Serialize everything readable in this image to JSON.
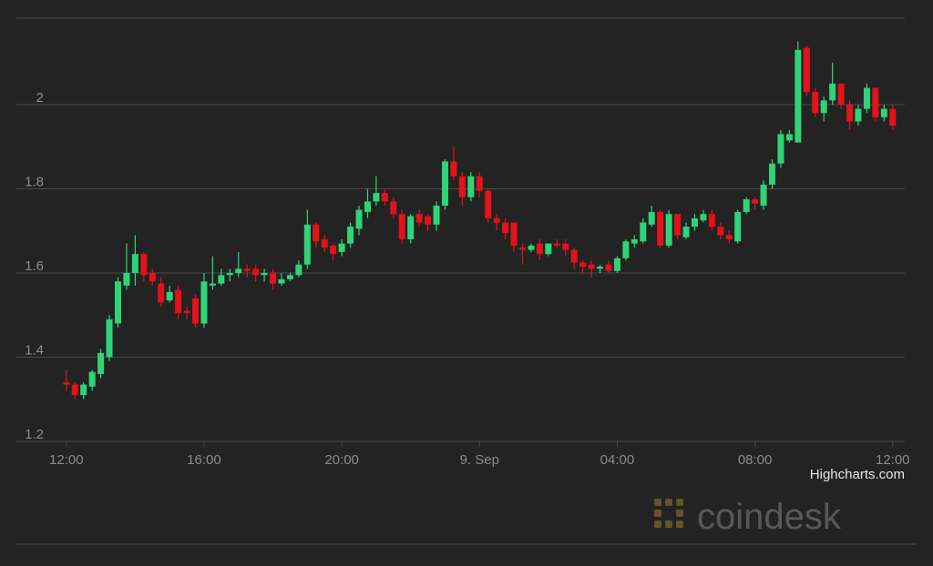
{
  "chart_data": {
    "type": "candlestick",
    "x": [
      0,
      0.25,
      0.5,
      0.75,
      1,
      1.25,
      1.5,
      1.75,
      2,
      2.25,
      2.5,
      2.75,
      3,
      3.25,
      3.5,
      3.75,
      4,
      4.25,
      4.5,
      4.75,
      5,
      5.25,
      5.5,
      5.75,
      6,
      6.25,
      6.5,
      6.75,
      7,
      7.25,
      7.5,
      7.75,
      8,
      8.25,
      8.5,
      8.75,
      9,
      9.25,
      9.5,
      9.75,
      10,
      10.25,
      10.5,
      10.75,
      11,
      11.25,
      11.5,
      11.75,
      12,
      12.25,
      12.5,
      12.75,
      13,
      13.25,
      13.5,
      13.75,
      14,
      14.25,
      14.5,
      14.75,
      15,
      15.25,
      15.5,
      15.75,
      16,
      16.25,
      16.5,
      16.75,
      17,
      17.25,
      17.5,
      17.75,
      18,
      18.25,
      18.5,
      18.75,
      19,
      19.25,
      19.5,
      19.75,
      20,
      20.25,
      20.5,
      20.75,
      21,
      21.25,
      21.5,
      21.75,
      22,
      22.25,
      22.5,
      22.75,
      23,
      23.25,
      23.5,
      23.75,
      24
    ],
    "series": [
      {
        "open": [
          1.34,
          1.335,
          1.31,
          1.33,
          1.36,
          1.4,
          1.48,
          1.57,
          1.6,
          1.645,
          1.6,
          1.575,
          1.535,
          1.56,
          1.51,
          1.54,
          1.48,
          1.57,
          1.575,
          1.595,
          1.6,
          1.61,
          1.61,
          1.595,
          1.6,
          1.575,
          1.585,
          1.595,
          1.62,
          1.715,
          1.68,
          1.665,
          1.65,
          1.67,
          1.705,
          1.745,
          1.77,
          1.79,
          1.77,
          1.74,
          1.68,
          1.74,
          1.735,
          1.715,
          1.76,
          1.865,
          1.83,
          1.78,
          1.83,
          1.795,
          1.73,
          1.72,
          1.72,
          1.66,
          1.655,
          1.67,
          1.645,
          1.67,
          1.67,
          1.655,
          1.625,
          1.62,
          1.61,
          1.62,
          1.605,
          1.635,
          1.67,
          1.675,
          1.715,
          1.745,
          1.665,
          1.74,
          1.685,
          1.71,
          1.725,
          1.74,
          1.71,
          1.69,
          1.675,
          1.745,
          1.775,
          1.76,
          1.81,
          1.86,
          1.915,
          1.91,
          2.135,
          2.03,
          1.98,
          2.01,
          2.05,
          2,
          1.96,
          1.99,
          2.04,
          1.97,
          1.99
        ],
        "high": [
          1.37,
          1.34,
          1.34,
          1.37,
          1.42,
          1.5,
          1.59,
          1.67,
          1.69,
          1.65,
          1.61,
          1.59,
          1.57,
          1.57,
          1.52,
          1.55,
          1.6,
          1.64,
          1.61,
          1.61,
          1.65,
          1.62,
          1.62,
          1.61,
          1.61,
          1.6,
          1.6,
          1.63,
          1.75,
          1.72,
          1.69,
          1.67,
          1.68,
          1.72,
          1.76,
          1.8,
          1.83,
          1.8,
          1.78,
          1.75,
          1.74,
          1.75,
          1.74,
          1.77,
          1.87,
          1.9,
          1.84,
          1.84,
          1.84,
          1.8,
          1.74,
          1.73,
          1.72,
          1.67,
          1.67,
          1.68,
          1.67,
          1.68,
          1.68,
          1.66,
          1.63,
          1.63,
          1.62,
          1.63,
          1.64,
          1.68,
          1.69,
          1.73,
          1.76,
          1.75,
          1.75,
          1.74,
          1.72,
          1.74,
          1.75,
          1.75,
          1.72,
          1.7,
          1.75,
          1.78,
          1.78,
          1.82,
          1.87,
          1.94,
          1.94,
          2.15,
          2.14,
          2.04,
          2.02,
          2.1,
          2.05,
          2.01,
          2,
          2.05,
          2.04,
          2,
          2
        ],
        "low": [
          1.32,
          1.3,
          1.3,
          1.32,
          1.35,
          1.39,
          1.47,
          1.56,
          1.57,
          1.58,
          1.57,
          1.52,
          1.53,
          1.49,
          1.49,
          1.47,
          1.47,
          1.56,
          1.57,
          1.58,
          1.59,
          1.59,
          1.58,
          1.58,
          1.56,
          1.57,
          1.58,
          1.59,
          1.61,
          1.66,
          1.65,
          1.63,
          1.64,
          1.66,
          1.69,
          1.73,
          1.76,
          1.76,
          1.73,
          1.67,
          1.67,
          1.71,
          1.7,
          1.7,
          1.75,
          1.82,
          1.76,
          1.77,
          1.78,
          1.72,
          1.7,
          1.68,
          1.65,
          1.62,
          1.65,
          1.63,
          1.64,
          1.66,
          1.64,
          1.61,
          1.6,
          1.59,
          1.6,
          1.6,
          1.6,
          1.63,
          1.66,
          1.67,
          1.71,
          1.66,
          1.66,
          1.68,
          1.68,
          1.7,
          1.72,
          1.7,
          1.68,
          1.67,
          1.67,
          1.74,
          1.75,
          1.75,
          1.8,
          1.85,
          1.91,
          1.91,
          2.02,
          1.97,
          1.96,
          2,
          1.99,
          1.94,
          1.95,
          1.98,
          1.96,
          1.96,
          1.94
        ],
        "close": [
          1.335,
          1.31,
          1.335,
          1.365,
          1.41,
          1.49,
          1.58,
          1.6,
          1.645,
          1.595,
          1.58,
          1.53,
          1.555,
          1.505,
          1.505,
          1.48,
          1.58,
          1.575,
          1.595,
          1.6,
          1.61,
          1.605,
          1.595,
          1.6,
          1.575,
          1.585,
          1.595,
          1.62,
          1.715,
          1.675,
          1.66,
          1.645,
          1.67,
          1.71,
          1.75,
          1.77,
          1.79,
          1.77,
          1.74,
          1.68,
          1.735,
          1.72,
          1.715,
          1.76,
          1.865,
          1.83,
          1.78,
          1.83,
          1.795,
          1.73,
          1.72,
          1.695,
          1.665,
          1.655,
          1.665,
          1.645,
          1.67,
          1.665,
          1.655,
          1.625,
          1.615,
          1.61,
          1.615,
          1.605,
          1.635,
          1.675,
          1.68,
          1.72,
          1.745,
          1.665,
          1.74,
          1.69,
          1.71,
          1.73,
          1.74,
          1.71,
          1.69,
          1.68,
          1.745,
          1.775,
          1.765,
          1.81,
          1.86,
          1.93,
          1.93,
          2.13,
          2.03,
          1.98,
          2.01,
          2.05,
          2,
          1.96,
          1.99,
          2.04,
          1.97,
          1.99,
          1.95
        ],
        "up_color": "#2fd477",
        "down_color": "#e3121b"
      }
    ],
    "xlim": [
      -1.45,
      24.35
    ],
    "xticks": [
      {
        "value": 0,
        "label": "12:00"
      },
      {
        "value": 4,
        "label": "16:00"
      },
      {
        "value": 8,
        "label": "20:00"
      },
      {
        "value": 12,
        "label": "9. Sep"
      },
      {
        "value": 16,
        "label": "04:00"
      },
      {
        "value": 20,
        "label": "08:00"
      },
      {
        "value": 24,
        "label": "12:00"
      }
    ],
    "ylim": [
      1.2,
      2.2
    ],
    "yticks": [
      1.2,
      1.4,
      1.6,
      1.8,
      2
    ],
    "grid": true,
    "credits": "Highcharts.com",
    "watermark": "coindesk"
  }
}
